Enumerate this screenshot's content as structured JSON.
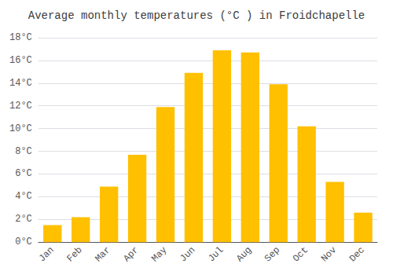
{
  "chart_data": {
    "type": "bar",
    "title": "Average monthly temperatures (°C ) in Froidchapelle",
    "categories": [
      "Jan",
      "Feb",
      "Mar",
      "Apr",
      "May",
      "Jun",
      "Jul",
      "Aug",
      "Sep",
      "Oct",
      "Nov",
      "Dec"
    ],
    "values": [
      1.5,
      2.2,
      4.9,
      7.7,
      11.9,
      14.9,
      16.9,
      16.7,
      13.9,
      10.2,
      5.3,
      2.6
    ],
    "color": "#FFC000",
    "ylim": [
      0,
      18
    ],
    "yticks": [
      {
        "value": 0,
        "label": "0°C"
      },
      {
        "value": 2,
        "label": "2°C"
      },
      {
        "value": 4,
        "label": "4°C"
      },
      {
        "value": 6,
        "label": "6°C"
      },
      {
        "value": 8,
        "label": "8°C"
      },
      {
        "value": 10,
        "label": "10°C"
      },
      {
        "value": 12,
        "label": "12°C"
      },
      {
        "value": 14,
        "label": "14°C"
      },
      {
        "value": 16,
        "label": "16°C"
      },
      {
        "value": 18,
        "label": "18°C"
      }
    ],
    "grid": true
  }
}
